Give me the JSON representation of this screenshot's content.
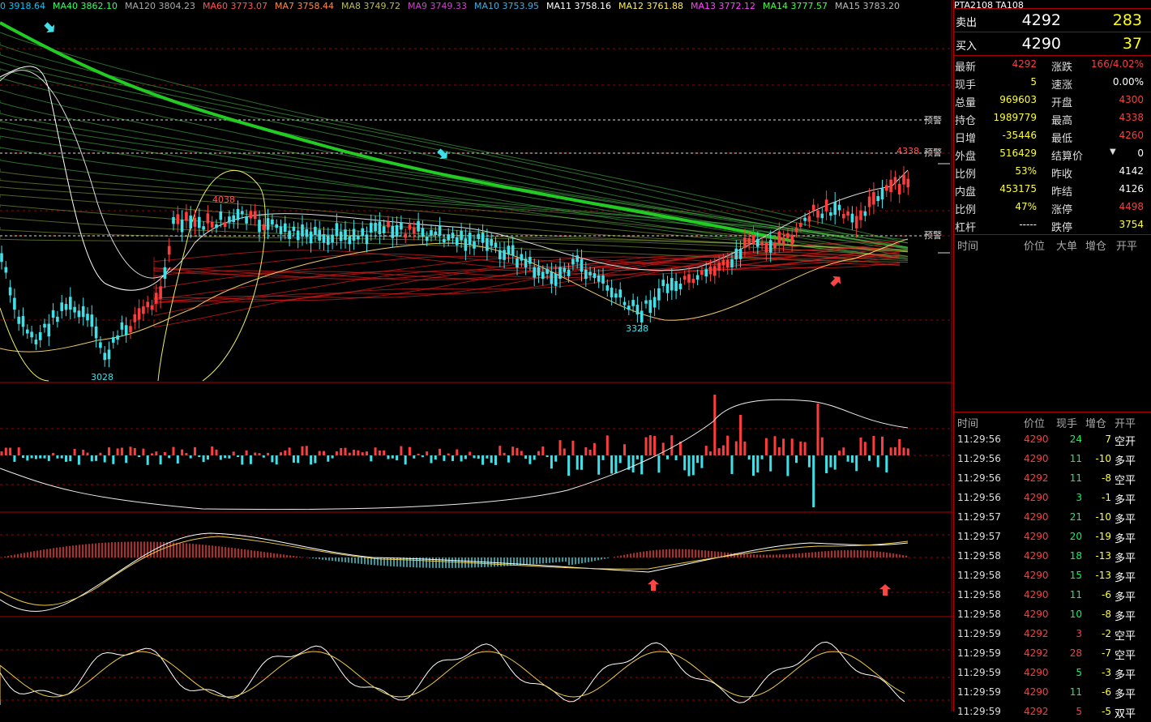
{
  "ma_legend": [
    {
      "label": "0",
      "value": "3918.64",
      "color": "#00c8ff"
    },
    {
      "label": "MA40",
      "value": "3862.10",
      "color": "#33ff66"
    },
    {
      "label": "MA120",
      "value": "3804.23",
      "color": "#aaaaaa"
    },
    {
      "label": "MA60",
      "value": "3773.07",
      "color": "#ff5555"
    },
    {
      "label": "MA7",
      "value": "3758.44",
      "color": "#ff8844"
    },
    {
      "label": "MA8",
      "value": "3749.72",
      "color": "#bbbb55"
    },
    {
      "label": "MA9",
      "value": "3749.33",
      "color": "#cc44cc"
    },
    {
      "label": "MA10",
      "value": "3753.95",
      "color": "#44aadd"
    },
    {
      "label": "MA11",
      "value": "3758.16",
      "color": "#ffffff"
    },
    {
      "label": "MA12",
      "value": "3761.88",
      "color": "#ffee55"
    },
    {
      "label": "MA13",
      "value": "3772.12",
      "color": "#ff44ff"
    },
    {
      "label": "MA14",
      "value": "3777.57",
      "color": "#44ff44"
    },
    {
      "label": "MA15",
      "value": "3783.20",
      "color": "#bbbbbb"
    }
  ],
  "price_labels": {
    "high_left": "4038",
    "low_left": "3028",
    "low_mid": "3328",
    "high_right": "4338"
  },
  "alert_label": "预警",
  "header_partial": "PTA2108 TA108",
  "quote": {
    "sell": {
      "label": "卖出",
      "price": "4292",
      "volume": "283"
    },
    "buy": {
      "label": "买入",
      "price": "4290",
      "volume": "37"
    }
  },
  "stats": [
    {
      "l1": "最新",
      "v1": "4292",
      "c1": "red",
      "l2": "涨跌",
      "v2": "166/4.02%",
      "c2": "red"
    },
    {
      "l1": "现手",
      "v1": "5",
      "c1": "yel",
      "l2": "速涨",
      "v2": "0.00%",
      "c2": "wht"
    },
    {
      "l1": "总量",
      "v1": "969603",
      "c1": "yel",
      "l2": "开盘",
      "v2": "4300",
      "c2": "red"
    },
    {
      "l1": "持仓",
      "v1": "1989779",
      "c1": "yel",
      "l2": "最高",
      "v2": "4338",
      "c2": "red"
    },
    {
      "l1": "日增",
      "v1": "-35446",
      "c1": "yel",
      "l2": "最低",
      "v2": "4260",
      "c2": "red"
    },
    {
      "l1": "外盘",
      "v1": "516429",
      "c1": "yel",
      "l2": "结算价",
      "v2": "0",
      "c2": "wht"
    },
    {
      "l1": "比例",
      "v1": "53%",
      "c1": "yel",
      "l2": "昨收",
      "v2": "4142",
      "c2": "wht"
    },
    {
      "l1": "内盘",
      "v1": "453175",
      "c1": "yel",
      "l2": "昨结",
      "v2": "4126",
      "c2": "wht"
    },
    {
      "l1": "比例",
      "v1": "47%",
      "c1": "yel",
      "l2": "涨停",
      "v2": "4498",
      "c2": "red"
    },
    {
      "l1": "杠杆",
      "v1": "-----",
      "c1": "wht",
      "l2": "跌停",
      "v2": "3754",
      "c2": "yel"
    }
  ],
  "upper_table_header": {
    "time": "时间",
    "price": "价位",
    "big": "大单",
    "inc": "增仓",
    "open": "开平"
  },
  "tick_header": {
    "time": "时间",
    "price": "价位",
    "vol": "现手",
    "inc": "增仓",
    "type": "开平"
  },
  "ticks": [
    {
      "time": "11:29:56",
      "price": "4290",
      "vol": "24",
      "inc": "7",
      "type": "空开"
    },
    {
      "time": "11:29:56",
      "price": "4290",
      "vol": "11",
      "inc": "-10",
      "type": "多平"
    },
    {
      "time": "11:29:56",
      "price": "4292",
      "vol": "11",
      "inc": "-8",
      "type": "空平"
    },
    {
      "time": "11:29:56",
      "price": "4290",
      "vol": "3",
      "inc": "-1",
      "type": "多平"
    },
    {
      "time": "11:29:57",
      "price": "4290",
      "vol": "21",
      "inc": "-10",
      "type": "多平"
    },
    {
      "time": "11:29:57",
      "price": "4290",
      "vol": "20",
      "inc": "-19",
      "type": "多平"
    },
    {
      "time": "11:29:58",
      "price": "4290",
      "vol": "18",
      "inc": "-13",
      "type": "多平"
    },
    {
      "time": "11:29:58",
      "price": "4290",
      "vol": "15",
      "inc": "-13",
      "type": "多平"
    },
    {
      "time": "11:29:58",
      "price": "4290",
      "vol": "11",
      "inc": "-6",
      "type": "多平"
    },
    {
      "time": "11:29:58",
      "price": "4290",
      "vol": "10",
      "inc": "-8",
      "type": "多平"
    },
    {
      "time": "11:29:59",
      "price": "4292",
      "vol": "3",
      "inc": "-2",
      "type": "空平"
    },
    {
      "time": "11:29:59",
      "price": "4292",
      "vol": "28",
      "inc": "-7",
      "type": "空平"
    },
    {
      "time": "11:29:59",
      "price": "4290",
      "vol": "5",
      "inc": "-3",
      "type": "多平"
    },
    {
      "time": "11:29:59",
      "price": "4290",
      "vol": "11",
      "inc": "-6",
      "type": "多平"
    },
    {
      "time": "11:29:59",
      "price": "4292",
      "vol": "5",
      "inc": "-5",
      "type": "双平"
    }
  ],
  "colors": {
    "up": "#ff3c3c",
    "down": "#40e0e8",
    "grid": "#9a0000",
    "ma_bold": "#22cc22"
  }
}
